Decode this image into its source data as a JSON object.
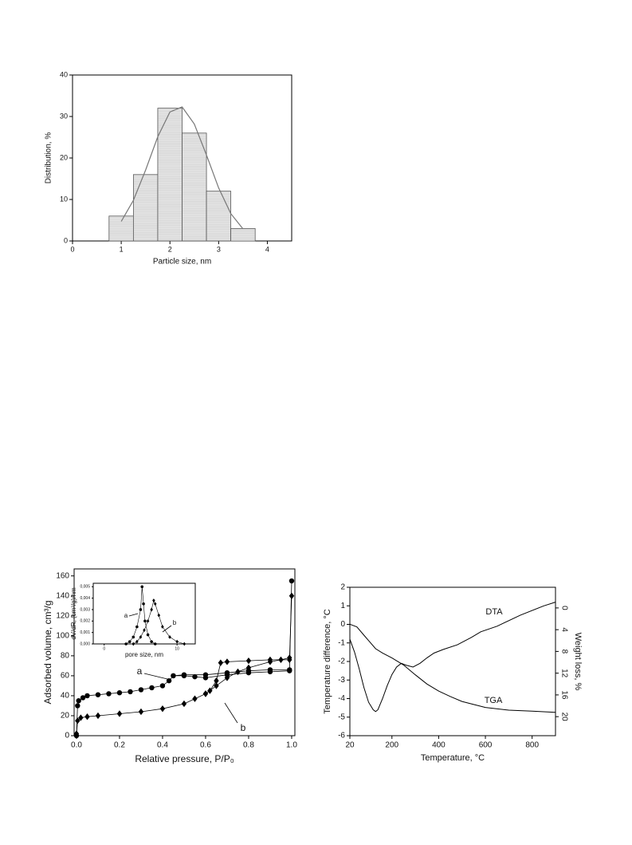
{
  "chart_data": [
    {
      "type": "histogram",
      "xlabel": "Particle size, nm",
      "ylabel": "Distribution, %",
      "bins": [
        0.75,
        1.25,
        1.75,
        2.25,
        2.75,
        3.25,
        3.75
      ],
      "values": [
        6,
        16,
        32,
        26,
        12,
        3
      ],
      "color": "#e6e6e6",
      "fit": {
        "x": [
          1.0,
          1.25,
          1.5,
          1.75,
          2.0,
          2.25,
          2.5,
          2.75,
          3.0,
          3.25,
          3.5
        ],
        "values": [
          4.7,
          9.8,
          17.1,
          25.1,
          31.1,
          32.3,
          28.2,
          20.7,
          12.8,
          6.6,
          2.9
        ],
        "color": "#777777"
      },
      "xlim": [
        0,
        4.5
      ],
      "ylim": [
        0,
        40
      ],
      "xticks": [
        0,
        1,
        2,
        3,
        4
      ],
      "yticks": [
        0,
        10,
        20,
        30,
        40
      ]
    },
    {
      "type": "line",
      "xlabel": "Relative pressure, P/P₀",
      "ylabel": "Adsorbed volume, cm³/g",
      "xlim": [
        -0.011,
        1.015
      ],
      "ylim": [
        0,
        167
      ],
      "xticks": [
        {
          "value": 0,
          "label": "0.0"
        },
        {
          "value": 0.2,
          "label": "0.2"
        },
        {
          "value": 0.4,
          "label": "0.4"
        },
        {
          "value": 0.6,
          "label": "0.6"
        },
        {
          "value": 0.8,
          "label": "0.8"
        },
        {
          "value": 1,
          "label": "1.0"
        }
      ],
      "yticks": [
        0,
        20,
        40,
        60,
        80,
        100,
        120,
        140,
        160
      ],
      "series": [
        {
          "name": "a",
          "color": "#000000",
          "marker": "circle",
          "x": [
            0,
            0.005,
            0.01,
            0.03,
            0.05,
            0.1,
            0.15,
            0.2,
            0.25,
            0.3,
            0.35,
            0.4,
            0.43,
            0.45,
            0.5,
            0.55,
            0.6,
            0.7,
            0.8,
            0.9,
            0.99,
            1.0,
            null,
            0.99,
            0.9,
            0.8,
            0.7,
            0.6,
            0.5,
            0.45
          ],
          "values": [
            0,
            30,
            35,
            38,
            40,
            41,
            42,
            43,
            44,
            46,
            48,
            50,
            55,
            60,
            60,
            59,
            58,
            61,
            63,
            64,
            65,
            155,
            null,
            66,
            66,
            65,
            63,
            61,
            61,
            60
          ]
        },
        {
          "name": "b",
          "color": "#000000",
          "marker": "diamond",
          "x": [
            0,
            0.005,
            0.02,
            0.05,
            0.1,
            0.2,
            0.3,
            0.4,
            0.5,
            0.55,
            0.6,
            0.65,
            0.7,
            0.75,
            0.8,
            0.9,
            0.95,
            0.99,
            1.0,
            null,
            0.99,
            0.9,
            0.8,
            0.7,
            0.67,
            0.65,
            0.62,
            0.6
          ],
          "values": [
            2,
            15,
            18,
            19,
            20,
            22,
            24,
            27,
            32,
            37,
            42,
            50,
            58,
            64,
            68,
            74,
            76,
            78,
            140,
            null,
            76,
            76,
            75,
            74,
            73,
            55,
            45,
            42
          ]
        }
      ],
      "inset": {
        "type": "line",
        "xlabel": "pore size, nm",
        "ylabel": "dV/dR, (cm³/g)/nm",
        "xlim": [
          -1.5,
          12.5
        ],
        "ylim": [
          0,
          0.0053
        ],
        "xticks": [
          0,
          10
        ],
        "yticks": [
          {
            "value": 0,
            "label": "0,000"
          },
          {
            "value": 0.001,
            "label": "0,001"
          },
          {
            "value": 0.002,
            "label": "0,002"
          },
          {
            "value": 0.003,
            "label": "0,003"
          },
          {
            "value": 0.004,
            "label": "0,004"
          },
          {
            "value": 0.005,
            "label": "0,005"
          }
        ],
        "series": [
          {
            "name": "a",
            "color": "#000000",
            "marker": "circle",
            "x": [
              3,
              3.5,
              4,
              4.5,
              5,
              5.2,
              5.4,
              5.6,
              6,
              6.5,
              7
            ],
            "values": [
              0,
              0.0002,
              0.0006,
              0.0015,
              0.003,
              0.005,
              0.0035,
              0.002,
              0.0008,
              0.0002,
              0
            ]
          },
          {
            "name": "b",
            "color": "#000000",
            "marker": "diamond",
            "x": [
              4,
              4.5,
              5,
              5.5,
              6,
              6.5,
              6.8,
              7,
              7.5,
              8,
              9,
              10,
              11
            ],
            "values": [
              0,
              0.0002,
              0.0006,
              0.0012,
              0.002,
              0.003,
              0.0038,
              0.0035,
              0.0025,
              0.0015,
              0.0006,
              0.0002,
              0
            ]
          }
        ]
      }
    },
    {
      "type": "line",
      "xlabel": "Temperature, °C",
      "ylabel": "Temperature difference, °C",
      "y2label": "Weight loss, %",
      "xlim": [
        20,
        900
      ],
      "ylim": [
        -6,
        2
      ],
      "y2lim": [
        23.5,
        -3.8
      ],
      "xticks": [
        20,
        200,
        400,
        600,
        800
      ],
      "yticks": [
        -6,
        -5,
        -4,
        -3,
        -2,
        -1,
        0,
        1,
        2
      ],
      "y2ticks": [
        0,
        4,
        8,
        12,
        16,
        20
      ],
      "series": [
        {
          "name": "DTA",
          "color": "#000000",
          "x": [
            20,
            40,
            60,
            80,
            100,
            120,
            130,
            140,
            160,
            180,
            200,
            220,
            240,
            260,
            290,
            320,
            350,
            380,
            420,
            480,
            540,
            580,
            650,
            750,
            850,
            900
          ],
          "values": [
            -0.8,
            -1.5,
            -2.4,
            -3.4,
            -4.2,
            -4.6,
            -4.7,
            -4.6,
            -4.0,
            -3.3,
            -2.7,
            -2.3,
            -2.1,
            -2.2,
            -2.3,
            -2.1,
            -1.8,
            -1.55,
            -1.35,
            -1.1,
            -0.7,
            -0.4,
            -0.1,
            0.5,
            1.0,
            1.2
          ]
        },
        {
          "name": "TGA",
          "color": "#000000",
          "axis": "y2",
          "x": [
            20,
            50,
            80,
            100,
            130,
            160,
            200,
            250,
            300,
            350,
            400,
            450,
            500,
            600,
            700,
            800,
            900
          ],
          "values": [
            3,
            3.5,
            5,
            6,
            7.5,
            8.3,
            9.2,
            10.5,
            12.3,
            14,
            15.3,
            16.3,
            17.2,
            18.3,
            18.8,
            19.0,
            19.2
          ]
        }
      ]
    }
  ]
}
